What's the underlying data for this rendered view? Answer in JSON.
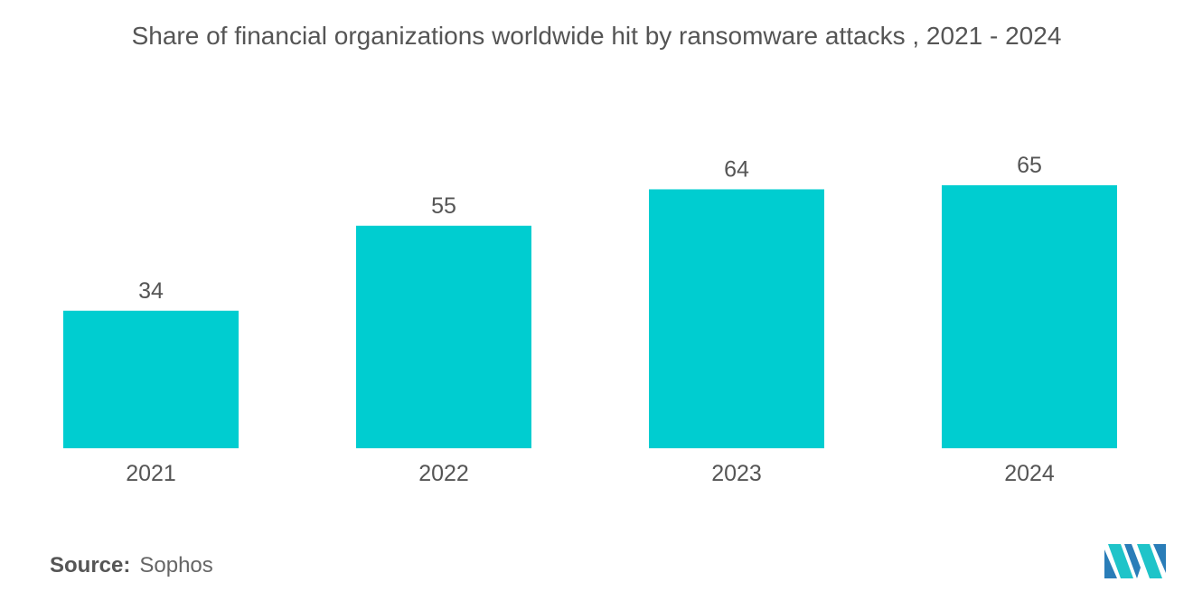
{
  "title": "Share of financial organizations worldwide hit by ransomware attacks , 2021 - 2024",
  "source": {
    "label": "Source:",
    "value": "Sophos"
  },
  "logo": {
    "icon": "brand-logo-icon",
    "colors": [
      "#2a7db8",
      "#1fc4c9"
    ]
  },
  "colors": {
    "bar": "#00cdd0",
    "text": "#555555"
  },
  "chart_data": {
    "type": "bar",
    "categories": [
      "2021",
      "2022",
      "2023",
      "2024"
    ],
    "values": [
      34,
      55,
      64,
      65
    ],
    "title": "Share of financial organizations worldwide hit by ransomware attacks , 2021 - 2024",
    "xlabel": "",
    "ylabel": "",
    "ylim": [
      0,
      65
    ],
    "grid": false,
    "data_labels": true
  }
}
